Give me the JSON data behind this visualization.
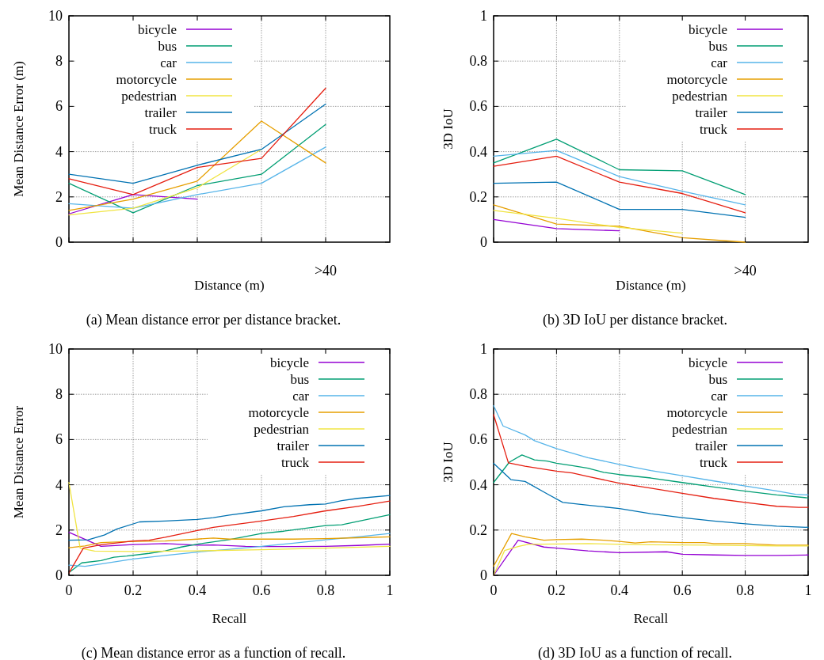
{
  "chart_data": [
    {
      "type": "line",
      "xlabel": "Distance (m)",
      "ylabel": "Mean Distance Error (m)",
      "categories": [
        null,
        null,
        null,
        null,
        ">40"
      ],
      "ylim": [
        0,
        10
      ],
      "yticks": [
        0,
        2,
        4,
        6,
        8,
        10
      ],
      "grid": true,
      "legend": "top left",
      "annotations": [
        "(a) Mean distance error per distance bracket."
      ],
      "series": [
        {
          "name": "bicycle",
          "color": "#9400d3",
          "values": [
            1.25,
            2.1,
            1.9,
            null,
            null
          ]
        },
        {
          "name": "bus",
          "color": "#009e73",
          "values": [
            2.6,
            1.3,
            2.5,
            3.0,
            5.2
          ]
        },
        {
          "name": "car",
          "color": "#56b4e9",
          "values": [
            1.7,
            1.5,
            2.1,
            2.6,
            4.2
          ]
        },
        {
          "name": "motorcycle",
          "color": "#e69f00",
          "values": [
            1.4,
            1.9,
            2.7,
            5.35,
            3.5
          ]
        },
        {
          "name": "pedestrian",
          "color": "#f0e442",
          "values": [
            1.2,
            1.5,
            2.4,
            4.1,
            null
          ]
        },
        {
          "name": "trailer",
          "color": "#0072b2",
          "values": [
            3.0,
            2.6,
            3.4,
            4.1,
            6.1
          ]
        },
        {
          "name": "truck",
          "color": "#e51e10",
          "values": [
            2.8,
            2.1,
            3.3,
            3.7,
            6.8
          ]
        }
      ]
    },
    {
      "type": "line",
      "xlabel": "Distance (m)",
      "ylabel": "3D IoU",
      "categories": [
        null,
        null,
        null,
        null,
        ">40"
      ],
      "ylim": [
        0,
        1
      ],
      "yticks": [
        0,
        0.2,
        0.4,
        0.6,
        0.8,
        1
      ],
      "grid": true,
      "legend": "top right",
      "annotations": [
        "(b) 3D IoU per distance bracket."
      ],
      "series": [
        {
          "name": "bicycle",
          "color": "#9400d3",
          "values": [
            0.1,
            0.06,
            0.05,
            null,
            null
          ]
        },
        {
          "name": "bus",
          "color": "#009e73",
          "values": [
            0.35,
            0.455,
            0.32,
            0.315,
            0.21
          ]
        },
        {
          "name": "car",
          "color": "#56b4e9",
          "values": [
            0.38,
            0.405,
            0.29,
            0.225,
            0.165
          ]
        },
        {
          "name": "motorcycle",
          "color": "#e69f00",
          "values": [
            0.165,
            0.08,
            0.07,
            0.02,
            0.0
          ]
        },
        {
          "name": "pedestrian",
          "color": "#f0e442",
          "values": [
            0.14,
            0.105,
            0.065,
            0.04,
            null
          ]
        },
        {
          "name": "trailer",
          "color": "#0072b2",
          "values": [
            0.26,
            0.265,
            0.145,
            0.145,
            0.11
          ]
        },
        {
          "name": "truck",
          "color": "#e51e10",
          "values": [
            0.335,
            0.38,
            0.265,
            0.215,
            0.13
          ]
        }
      ]
    },
    {
      "type": "line",
      "xlabel": "Recall",
      "ylabel": "Mean Distance Error",
      "xlim": [
        0,
        1
      ],
      "xticks": [
        0,
        0.2,
        0.4,
        0.6,
        0.8,
        1
      ],
      "ylim": [
        0,
        10
      ],
      "yticks": [
        0,
        2,
        4,
        6,
        8,
        10
      ],
      "grid": true,
      "legend": "top right",
      "annotations": [
        "(c) Mean distance error as a function of recall."
      ],
      "series": [
        {
          "name": "bicycle",
          "color": "#9400d3",
          "x": [
            0,
            0.1,
            0.2,
            0.3,
            0.4,
            0.45,
            0.55,
            0.6,
            0.7,
            0.8,
            0.9,
            1
          ],
          "values": [
            1.9,
            1.28,
            1.36,
            1.4,
            1.33,
            1.34,
            1.28,
            1.27,
            1.27,
            1.28,
            1.32,
            1.38
          ]
        },
        {
          "name": "bus",
          "color": "#009e73",
          "x": [
            0,
            0.04,
            0.1,
            0.14,
            0.18,
            0.25,
            0.3,
            0.35,
            0.4,
            0.5,
            0.6,
            0.67,
            0.75,
            0.8,
            0.85,
            0.9,
            1
          ],
          "values": [
            0.12,
            0.55,
            0.65,
            0.8,
            0.85,
            0.97,
            1.08,
            1.25,
            1.38,
            1.58,
            1.85,
            1.95,
            2.1,
            2.2,
            2.23,
            2.38,
            2.68
          ]
        },
        {
          "name": "car",
          "color": "#56b4e9",
          "x": [
            0,
            0.05,
            0.1,
            0.2,
            0.3,
            0.4,
            0.5,
            0.6,
            0.7,
            0.8,
            0.9,
            1
          ],
          "values": [
            0.45,
            0.4,
            0.5,
            0.72,
            0.88,
            1.03,
            1.15,
            1.28,
            1.42,
            1.57,
            1.7,
            1.85
          ]
        },
        {
          "name": "motorcycle",
          "color": "#e69f00",
          "x": [
            0,
            0.05,
            0.1,
            0.2,
            0.3,
            0.4,
            0.45,
            0.5,
            0.6,
            0.7,
            0.8,
            0.9,
            1
          ],
          "values": [
            1.22,
            1.3,
            1.45,
            1.5,
            1.52,
            1.6,
            1.65,
            1.6,
            1.6,
            1.6,
            1.62,
            1.66,
            1.7
          ]
        },
        {
          "name": "pedestrian",
          "color": "#f0e442",
          "x": [
            0,
            0.035,
            0.08,
            0.2,
            0.4,
            0.6,
            0.8,
            1
          ],
          "values": [
            4.1,
            1.2,
            1.07,
            1.05,
            1.08,
            1.13,
            1.2,
            1.28
          ]
        },
        {
          "name": "trailer",
          "color": "#0072b2",
          "x": [
            0,
            0.06,
            0.11,
            0.15,
            0.22,
            0.3,
            0.4,
            0.45,
            0.5,
            0.6,
            0.67,
            0.75,
            0.8,
            0.85,
            0.9,
            1
          ],
          "values": [
            1.55,
            1.57,
            1.78,
            2.05,
            2.36,
            2.4,
            2.47,
            2.55,
            2.66,
            2.85,
            3.03,
            3.12,
            3.15,
            3.3,
            3.4,
            3.53
          ]
        },
        {
          "name": "truck",
          "color": "#e51e10",
          "x": [
            0,
            0.045,
            0.1,
            0.2,
            0.25,
            0.3,
            0.4,
            0.45,
            0.6,
            0.7,
            0.8,
            0.9,
            1
          ],
          "values": [
            0.1,
            1.2,
            1.35,
            1.52,
            1.55,
            1.68,
            1.98,
            2.12,
            2.4,
            2.6,
            2.85,
            3.05,
            3.28
          ]
        }
      ]
    },
    {
      "type": "line",
      "xlabel": "Recall",
      "ylabel": "3D IoU",
      "xlim": [
        0,
        1
      ],
      "xticks": [
        0,
        0.2,
        0.4,
        0.6,
        0.8,
        1
      ],
      "ylim": [
        0,
        1
      ],
      "yticks": [
        0,
        0.2,
        0.4,
        0.6,
        0.8,
        1
      ],
      "grid": true,
      "legend": "top right",
      "annotations": [
        "(d) 3D IoU as a function of recall."
      ],
      "series": [
        {
          "name": "bicycle",
          "color": "#9400d3",
          "x": [
            0,
            0.078,
            0.16,
            0.2,
            0.3,
            0.4,
            0.55,
            0.6,
            0.7,
            0.8,
            0.9,
            1
          ],
          "values": [
            0,
            0.155,
            0.125,
            0.12,
            0.108,
            0.1,
            0.104,
            0.093,
            0.09,
            0.088,
            0.088,
            0.09
          ]
        },
        {
          "name": "bus",
          "color": "#009e73",
          "x": [
            0,
            0.05,
            0.09,
            0.13,
            0.17,
            0.2,
            0.25,
            0.3,
            0.35,
            0.4,
            0.5,
            0.6,
            0.7,
            0.8,
            0.9,
            1
          ],
          "values": [
            0.41,
            0.5,
            0.532,
            0.51,
            0.505,
            0.495,
            0.485,
            0.473,
            0.455,
            0.445,
            0.43,
            0.41,
            0.39,
            0.372,
            0.355,
            0.342
          ]
        },
        {
          "name": "car",
          "color": "#56b4e9",
          "x": [
            0,
            0.03,
            0.1,
            0.13,
            0.2,
            0.3,
            0.4,
            0.5,
            0.6,
            0.7,
            0.8,
            0.9,
            0.96,
            1
          ],
          "values": [
            0.75,
            0.66,
            0.62,
            0.595,
            0.56,
            0.52,
            0.49,
            0.463,
            0.44,
            0.417,
            0.395,
            0.373,
            0.358,
            0.355
          ]
        },
        {
          "name": "motorcycle",
          "color": "#e69f00",
          "x": [
            0,
            0.057,
            0.1,
            0.16,
            0.2,
            0.28,
            0.35,
            0.4,
            0.45,
            0.5,
            0.6,
            0.67,
            0.7,
            0.8,
            0.9,
            1
          ],
          "values": [
            0.04,
            0.185,
            0.17,
            0.155,
            0.158,
            0.16,
            0.155,
            0.15,
            0.143,
            0.148,
            0.145,
            0.145,
            0.14,
            0.14,
            0.133,
            0.133
          ]
        },
        {
          "name": "pedestrian",
          "color": "#f0e442",
          "x": [
            0,
            0.035,
            0.08,
            0.11,
            0.3,
            0.5,
            0.7,
            0.9,
            1
          ],
          "values": [
            0,
            0.11,
            0.128,
            0.137,
            0.14,
            0.135,
            0.133,
            0.13,
            0.13
          ]
        },
        {
          "name": "trailer",
          "color": "#0072b2",
          "x": [
            0,
            0.055,
            0.1,
            0.17,
            0.22,
            0.3,
            0.4,
            0.5,
            0.6,
            0.7,
            0.8,
            0.9,
            1
          ],
          "values": [
            0.495,
            0.423,
            0.415,
            0.36,
            0.322,
            0.31,
            0.295,
            0.272,
            0.255,
            0.24,
            0.228,
            0.217,
            0.212
          ]
        },
        {
          "name": "truck",
          "color": "#e51e10",
          "x": [
            0,
            0.047,
            0.1,
            0.2,
            0.25,
            0.3,
            0.4,
            0.5,
            0.6,
            0.7,
            0.8,
            0.9,
            0.97,
            1
          ],
          "values": [
            0.71,
            0.497,
            0.482,
            0.46,
            0.452,
            0.437,
            0.407,
            0.385,
            0.362,
            0.34,
            0.322,
            0.305,
            0.3,
            0.3
          ]
        }
      ]
    }
  ]
}
